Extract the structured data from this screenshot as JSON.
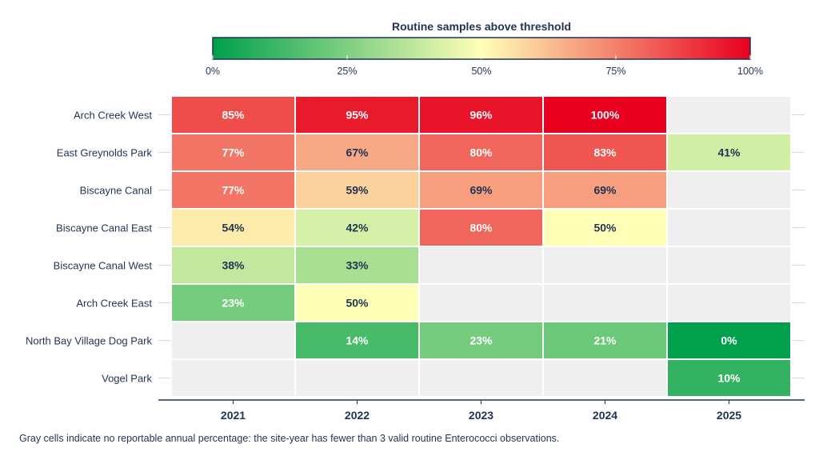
{
  "chart_data": {
    "type": "heatmap",
    "legend_title": "Routine samples above threshold",
    "legend_ticks": [
      "0%",
      "25%",
      "50%",
      "75%",
      "100%"
    ],
    "legend_tick_values": [
      0,
      25,
      50,
      75,
      100
    ],
    "legend_placement": "top",
    "value_range": [
      0,
      100
    ],
    "colorscale": [
      "#00a04c",
      "#ffffb8",
      "#e8001e"
    ],
    "missing_color": "#efefef",
    "x": [
      "2021",
      "2022",
      "2023",
      "2024",
      "2025"
    ],
    "y": [
      "Arch Creek West",
      "East Greynolds Park",
      "Biscayne Canal",
      "Biscayne Canal East",
      "Biscayne Canal West",
      "Arch Creek East",
      "North Bay Village Dog Park",
      "Vogel Park"
    ],
    "values": [
      [
        85,
        95,
        96,
        100,
        null
      ],
      [
        77,
        67,
        80,
        83,
        41
      ],
      [
        77,
        59,
        69,
        69,
        null
      ],
      [
        54,
        42,
        80,
        50,
        null
      ],
      [
        38,
        33,
        null,
        null,
        null
      ],
      [
        23,
        50,
        null,
        null,
        null
      ],
      [
        null,
        14,
        23,
        21,
        0
      ],
      [
        null,
        null,
        null,
        null,
        10
      ]
    ],
    "labels": [
      [
        "85%",
        "95%",
        "96%",
        "100%",
        null
      ],
      [
        "77%",
        "67%",
        "80%",
        "83%",
        "41%"
      ],
      [
        "77%",
        "59%",
        "69%",
        "69%",
        null
      ],
      [
        "54%",
        "42%",
        "80%",
        "50%",
        null
      ],
      [
        "38%",
        "33%",
        null,
        null,
        null
      ],
      [
        "23%",
        "50%",
        null,
        null,
        null
      ],
      [
        null,
        "14%",
        "23%",
        "21%",
        "0%"
      ],
      [
        null,
        null,
        null,
        null,
        "10%"
      ]
    ]
  },
  "footnote": "Gray cells indicate no reportable annual percentage: the site-year has fewer than 3 valid routine Enterococci observations."
}
